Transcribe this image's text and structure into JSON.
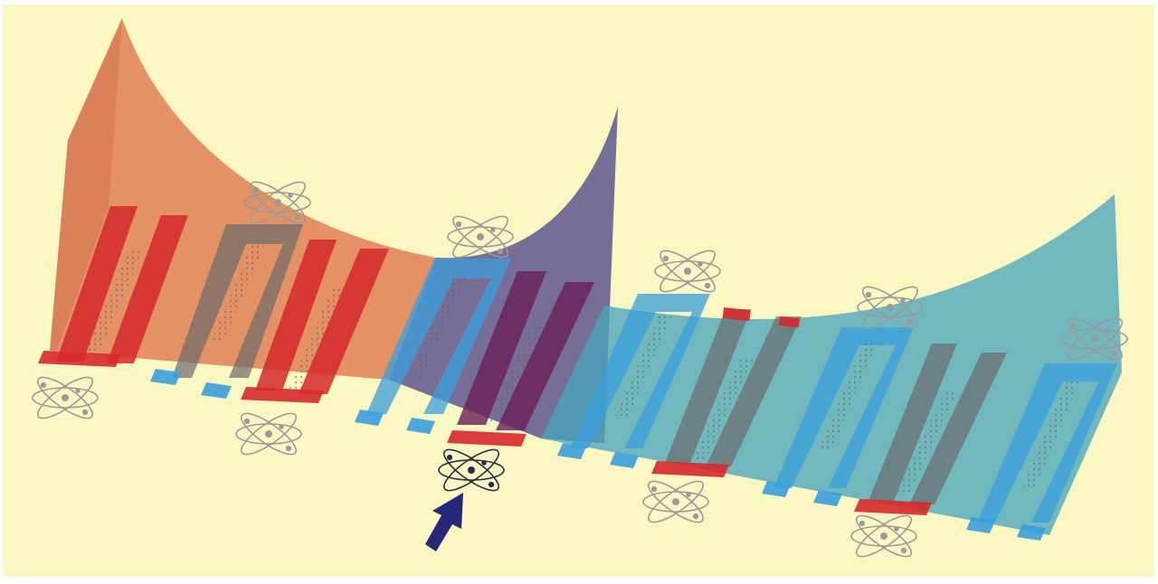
{
  "colors": {
    "background": "#faf7c2",
    "frame": "#ffffff",
    "surface_left": "#e07a52",
    "surface_middle": "#5a4f8f",
    "surface_right": "#4aa5bd",
    "electrode_red": "#d6282a",
    "electrode_blue": "#3a9fdc",
    "electrode_grey": "#6b6b6b",
    "atom_light": "#9a9a9a",
    "atom_dark": "#2b2b4a",
    "arrow": "#27277a"
  },
  "icons": {
    "atom": "atom-icon",
    "pointer": "arrow-up-right-icon"
  },
  "regions": [
    {
      "name": "left-region",
      "color": "surface_left"
    },
    {
      "name": "middle-region",
      "color": "surface_middle"
    },
    {
      "name": "right-region",
      "color": "surface_right"
    }
  ],
  "highlighted_atom_index": 3
}
